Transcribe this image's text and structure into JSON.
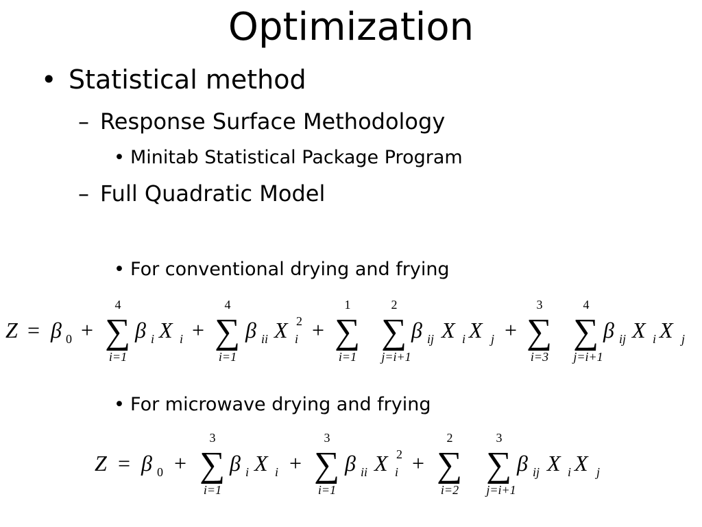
{
  "slide": {
    "title": "Optimization",
    "bullets": [
      {
        "marker": "•",
        "text": "Statistical method"
      },
      {
        "marker": "–",
        "text": "Response Surface Methodology"
      },
      {
        "marker": "•",
        "text": "Minitab Statistical Package Program"
      },
      {
        "marker": "–",
        "text": "Full Quadratic Model"
      },
      {
        "marker": "•",
        "text": "For conventional drying and frying"
      },
      {
        "marker": "•",
        "text": "For microwave drying and frying"
      }
    ]
  },
  "equations": {
    "conventional": {
      "lhs": "Z",
      "equals": "=",
      "plus": "+",
      "sum": "∑",
      "beta": "β",
      "x": "X",
      "sub0": "0",
      "subi": "i",
      "subii": "ii",
      "subij": "ij",
      "subj": "j",
      "sup2": "2",
      "sum1": {
        "upper": "4",
        "lower": "i=1"
      },
      "sum2": {
        "upper": "4",
        "lower": "i=1"
      },
      "sum3": {
        "upper": "1",
        "lower": "i=1"
      },
      "sum4": {
        "upper": "2",
        "lower": "j=i+1"
      },
      "sum5": {
        "upper": "3",
        "lower": "i=3"
      },
      "sum6": {
        "upper": "4",
        "lower": "j=i+1"
      }
    },
    "microwave": {
      "lhs": "Z",
      "equals": "=",
      "plus": "+",
      "sum": "∑",
      "beta": "β",
      "x": "X",
      "sub0": "0",
      "subi": "i",
      "subii": "ii",
      "subij": "ij",
      "subj": "j",
      "sup2": "2",
      "sum1": {
        "upper": "3",
        "lower": "i=1"
      },
      "sum2": {
        "upper": "3",
        "lower": "i=1"
      },
      "sum3": {
        "upper": "2",
        "lower": "i=2"
      },
      "sum4": {
        "upper": "3",
        "lower": "j=i+1"
      }
    }
  }
}
